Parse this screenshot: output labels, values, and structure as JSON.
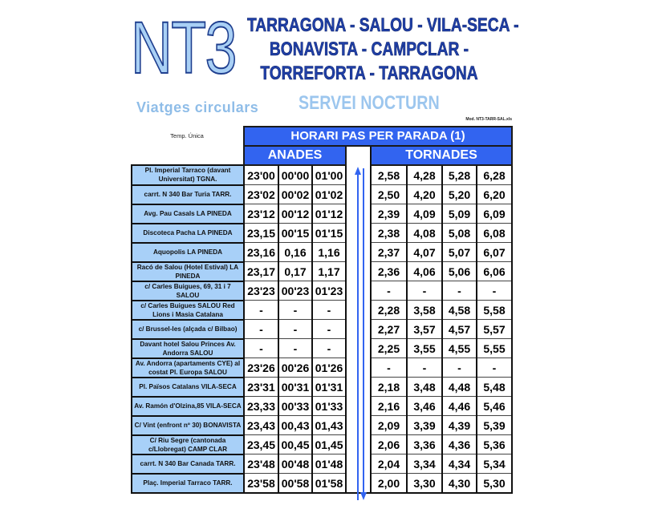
{
  "header": {
    "line_code": "NT3",
    "route_lines": [
      "TARRAGONA - SALOU - VILA-SECA -",
      "BONAVISTA - CAMPCLAR -",
      "TORREFORTA - TARRAGONA"
    ],
    "subtitle_left": "Viatges circulars",
    "subtitle_right": "SERVEI NOCTURN",
    "file_ref": "Mod. NT3-TARR-SAL.xls",
    "season": "Temp. Única"
  },
  "table": {
    "title": "HORARI PAS PER PARADA (1)",
    "outbound_label": "ANADES",
    "return_label": "TORNADES",
    "rows": [
      {
        "stop": "Pl. Imperial Tarraco (davant Universitat) TGNA.",
        "anades": [
          "23'00",
          "00'00",
          "01'00"
        ],
        "tornades": [
          "2,58",
          "4,28",
          "5,28",
          "6,28"
        ]
      },
      {
        "stop": "carrt. N 340 Bar Turia TARR.",
        "anades": [
          "23'02",
          "00'02",
          "01'02"
        ],
        "tornades": [
          "2,50",
          "4,20",
          "5,20",
          "6,20"
        ]
      },
      {
        "stop": "Avg. Pau Casals LA PINEDA",
        "anades": [
          "23'12",
          "00'12",
          "01'12"
        ],
        "tornades": [
          "2,39",
          "4,09",
          "5,09",
          "6,09"
        ]
      },
      {
        "stop": "Discoteca Pacha LA PINEDA",
        "anades": [
          "23,15",
          "00'15",
          "01'15"
        ],
        "tornades": [
          "2,38",
          "4,08",
          "5,08",
          "6,08"
        ]
      },
      {
        "stop": "Aquopolis LA PINEDA",
        "anades": [
          "23,16",
          "0,16",
          "1,16"
        ],
        "tornades": [
          "2,37",
          "4,07",
          "5,07",
          "6,07"
        ]
      },
      {
        "stop": "Racó de Salou (Hotel Estival) LA PINEDA",
        "anades": [
          "23,17",
          "0,17",
          "1,17"
        ],
        "tornades": [
          "2,36",
          "4,06",
          "5,06",
          "6,06"
        ]
      },
      {
        "stop": "c/ Carles Buigues, 69, 31 i 7 SALOU",
        "anades": [
          "23'23",
          "00'23",
          "01'23"
        ],
        "tornades": [
          "-",
          "-",
          "-",
          "-"
        ]
      },
      {
        "stop": "c/ Carles Buigues SALOU Red Lions i Masia Catalana",
        "anades": [
          "-",
          "-",
          "-"
        ],
        "tornades": [
          "2,28",
          "3,58",
          "4,58",
          "5,58"
        ]
      },
      {
        "stop": "c/ Brussel-les (alçada c/ Bilbao)",
        "anades": [
          "-",
          "-",
          "-"
        ],
        "tornades": [
          "2,27",
          "3,57",
          "4,57",
          "5,57"
        ]
      },
      {
        "stop": "Davant hotel Salou Princes    Av. Andorra SALOU",
        "anades": [
          "-",
          "-",
          "-"
        ],
        "tornades": [
          "2,25",
          "3,55",
          "4,55",
          "5,55"
        ]
      },
      {
        "stop": "Av. Andorra (apartaments CYE) al costat Pl. Europa SALOU",
        "anades": [
          "23'26",
          "00'26",
          "01'26"
        ],
        "tornades": [
          "-",
          "-",
          "-",
          "-"
        ]
      },
      {
        "stop": "Pl. Països Catalans VILA-SECA",
        "anades": [
          "23'31",
          "00'31",
          "01'31"
        ],
        "tornades": [
          "2,18",
          "3,48",
          "4,48",
          "5,48"
        ]
      },
      {
        "stop": "Av. Ramón d'Olzina,85 VILA-SECA",
        "anades": [
          "23,33",
          "00'33",
          "01'33"
        ],
        "tornades": [
          "2,16",
          "3,46",
          "4,46",
          "5,46"
        ]
      },
      {
        "stop": "C/ Vint (enfront nº 30) BONAVISTA",
        "anades": [
          "23,43",
          "00,43",
          "01,43"
        ],
        "tornades": [
          "2,09",
          "3,39",
          "4,39",
          "5,39"
        ]
      },
      {
        "stop": "C/ Riu Segre (cantonada c/Llobregat) CAMP CLAR",
        "anades": [
          "23,45",
          "00,45",
          "01,45"
        ],
        "tornades": [
          "2,06",
          "3,36",
          "4,36",
          "5,36"
        ]
      },
      {
        "stop": "carrt. N 340 Bar Canada TARR.",
        "anades": [
          "23'48",
          "00'48",
          "01'48"
        ],
        "tornades": [
          "2,04",
          "3,34",
          "4,34",
          "5,34"
        ]
      },
      {
        "stop": "Plaç. Imperial Tarraco TARR.",
        "anades": [
          "23'58",
          "00'58",
          "01'58"
        ],
        "tornades": [
          "2,00",
          "3,30",
          "4,30",
          "5,30"
        ]
      }
    ]
  },
  "colors": {
    "header_blue": "#3264f0",
    "stop_cell": "#a8d0f8",
    "title_blue": "#2040a8",
    "light_blue": "#a9d0f5",
    "arrow": "#3264f0"
  },
  "icons": {
    "direction": "up-down-arrows"
  }
}
